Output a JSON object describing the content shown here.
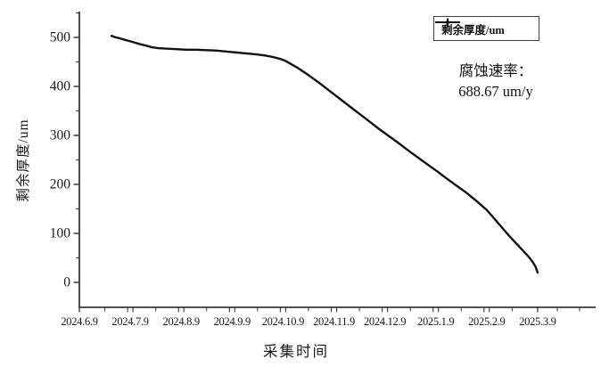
{
  "chart": {
    "legend": {
      "label": "剩余厚度/um"
    },
    "annotation": {
      "line1": "腐蚀速率：",
      "line2": "688.67 um/y"
    },
    "x_axis": {
      "title": "采集时间",
      "tick_labels": [
        "2024.6.9",
        "2024.7.9",
        "2024.8.9",
        "2024.9.9",
        "2024.10.9",
        "2024.11.9",
        "2024.12.9",
        "2025.1.9",
        "2025.2.9",
        "2025.3.9"
      ]
    },
    "y_axis": {
      "title": "剩余厚度/um",
      "tick_labels": [
        "0",
        "100",
        "200",
        "300",
        "400",
        "500"
      ]
    },
    "colors": {
      "line": "#111111",
      "axis": "#3a3a3a",
      "text": "#1a1a1a",
      "background": "#ffffff",
      "legend_border": "#3c3c3c"
    }
  },
  "chart_data": {
    "type": "line",
    "title": "",
    "xlabel": "采集时间",
    "ylabel": "剩余厚度/um",
    "x_unit": "months after 2024.6.9 (axis tick = 1 month)",
    "x_tick_labels": [
      "2024.6.9",
      "2024.7.9",
      "2024.8.9",
      "2024.9.9",
      "2024.10.9",
      "2024.11.9",
      "2024.12.9",
      "2025.1.9",
      "2025.2.9",
      "2025.3.9"
    ],
    "ylim": [
      0,
      500
    ],
    "y_ticks": [
      0,
      100,
      200,
      300,
      400,
      500
    ],
    "grid": false,
    "legend_position": "top-right",
    "annotation": "腐蚀速率： 688.67 um/y",
    "series": [
      {
        "name": "剩余厚度/um",
        "points": [
          [
            0.63,
            503
          ],
          [
            0.72,
            500
          ],
          [
            0.8,
            498
          ],
          [
            0.9,
            495
          ],
          [
            1.0,
            492
          ],
          [
            1.1,
            489
          ],
          [
            1.2,
            486
          ],
          [
            1.32,
            483
          ],
          [
            1.42,
            480
          ],
          [
            1.55,
            478
          ],
          [
            1.7,
            477
          ],
          [
            1.9,
            476
          ],
          [
            2.1,
            475
          ],
          [
            2.3,
            475
          ],
          [
            2.5,
            474
          ],
          [
            2.7,
            473
          ],
          [
            2.9,
            471
          ],
          [
            3.1,
            469
          ],
          [
            3.3,
            467
          ],
          [
            3.5,
            465
          ],
          [
            3.65,
            463
          ],
          [
            3.8,
            460
          ],
          [
            3.95,
            456
          ],
          [
            4.05,
            452
          ],
          [
            4.15,
            446
          ],
          [
            4.3,
            437
          ],
          [
            4.5,
            423
          ],
          [
            4.7,
            408
          ],
          [
            4.9,
            392
          ],
          [
            5.1,
            376
          ],
          [
            5.3,
            360
          ],
          [
            5.5,
            344
          ],
          [
            5.7,
            328
          ],
          [
            5.9,
            312
          ],
          [
            6.1,
            297
          ],
          [
            6.3,
            282
          ],
          [
            6.5,
            266
          ],
          [
            6.7,
            251
          ],
          [
            6.9,
            236
          ],
          [
            7.05,
            225
          ],
          [
            7.2,
            213
          ],
          [
            7.4,
            198
          ],
          [
            7.6,
            183
          ],
          [
            7.8,
            166
          ],
          [
            8.0,
            148
          ],
          [
            8.15,
            130
          ],
          [
            8.3,
            112
          ],
          [
            8.45,
            94
          ],
          [
            8.6,
            77
          ],
          [
            8.72,
            64
          ],
          [
            8.82,
            53
          ],
          [
            8.9,
            42
          ],
          [
            8.96,
            32
          ],
          [
            9.0,
            20
          ]
        ]
      }
    ]
  }
}
